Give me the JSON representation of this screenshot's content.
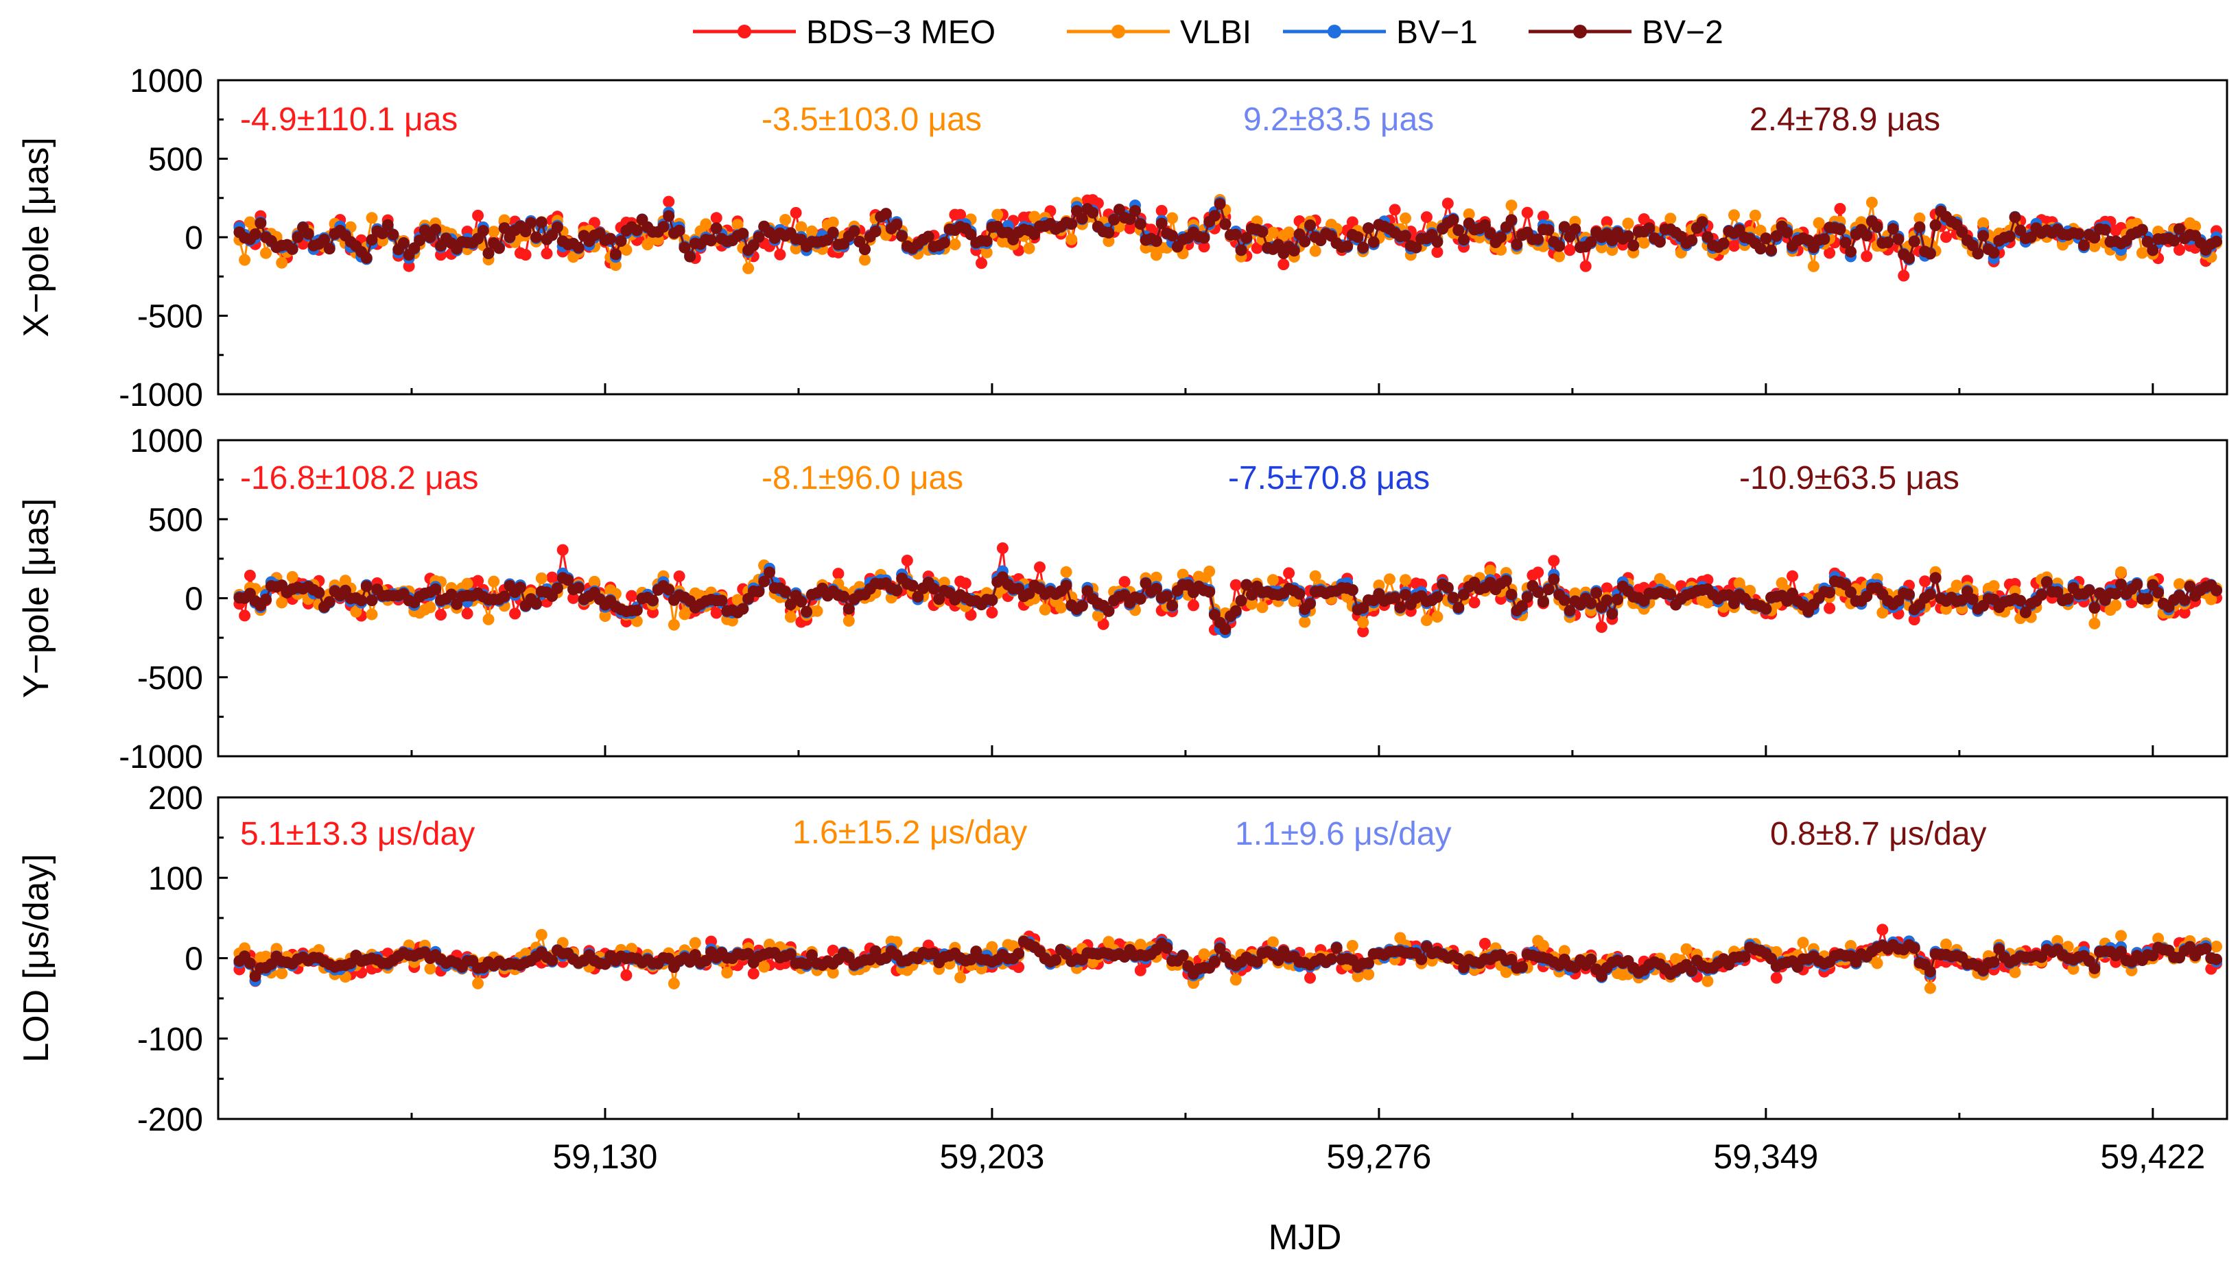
{
  "colors": {
    "bds3_meo": "#ff1a1a",
    "vlbi": "#ff8c00",
    "bv1": "#1f6fe0",
    "bv2": "#7a0f0f",
    "bv1_stat_light": "#6f86f2",
    "bv1_stat_dark": "#1f3fe0",
    "axis": "#000000",
    "background": "#ffffff"
  },
  "legend": {
    "placement": "top-center",
    "entries": [
      {
        "label": "BDS−3 MEO",
        "color": "#ff1a1a",
        "marker": "circle"
      },
      {
        "label": "VLBI",
        "color": "#ff8c00",
        "marker": "circle"
      },
      {
        "label": "BV−1",
        "color": "#1f6fe0",
        "marker": "circle"
      },
      {
        "label": "BV−2",
        "color": "#7a0f0f",
        "marker": "circle"
      }
    ]
  },
  "x_axis": {
    "label": "MJD",
    "range": [
      59057,
      59436
    ],
    "tick_values": [
      59130,
      59203,
      59276,
      59349,
      59422
    ],
    "tick_labels": [
      "59,130",
      "59,203",
      "59,276",
      "59,349",
      "59,422"
    ]
  },
  "chart_data": [
    {
      "type": "line",
      "panel": "x_pole",
      "ylabel": "X−pole [μas]",
      "ylim": [
        -1000,
        1000
      ],
      "yticks": [
        1000,
        500,
        0,
        -500,
        -1000
      ],
      "ytick_labels": [
        "1000",
        "500",
        "0",
        "-500",
        "-1000"
      ],
      "x_range": [
        59057,
        59436
      ],
      "series": [
        {
          "name": "BDS−3 MEO",
          "key": "bds3",
          "approx_std": 110
        },
        {
          "name": "VLBI",
          "key": "vlbi",
          "approx_std": 103
        },
        {
          "name": "BV−1",
          "key": "bv1",
          "approx_std": 84
        },
        {
          "name": "BV−2",
          "key": "bv2",
          "approx_std": 79
        }
      ],
      "annotations": [
        {
          "text": "-4.9±110.1 μas",
          "color": "#ff1a1a"
        },
        {
          "text": "-3.5±103.0 μas",
          "color": "#ff8c00"
        },
        {
          "text": "9.2±83.5 μas",
          "color": "#6f86f2"
        },
        {
          "text": "2.4±78.9 μas",
          "color": "#7a0f0f"
        }
      ]
    },
    {
      "type": "line",
      "panel": "y_pole",
      "ylabel": "Y−pole [μas]",
      "ylim": [
        -1000,
        1000
      ],
      "yticks": [
        1000,
        500,
        0,
        -500,
        -1000
      ],
      "ytick_labels": [
        "1000",
        "500",
        "0",
        "-500",
        "-1000"
      ],
      "x_range": [
        59057,
        59436
      ],
      "series": [
        {
          "name": "BDS−3 MEO",
          "key": "bds3",
          "approx_std": 108
        },
        {
          "name": "VLBI",
          "key": "vlbi",
          "approx_std": 96
        },
        {
          "name": "BV−1",
          "key": "bv1",
          "approx_std": 71
        },
        {
          "name": "BV−2",
          "key": "bv2",
          "approx_std": 64
        }
      ],
      "annotations": [
        {
          "text": "-16.8±108.2 μas",
          "color": "#ff1a1a"
        },
        {
          "text": "-8.1±96.0 μas",
          "color": "#ff8c00"
        },
        {
          "text": "-7.5±70.8 μas",
          "color": "#1f3fe0"
        },
        {
          "text": "-10.9±63.5 μas",
          "color": "#7a0f0f"
        }
      ]
    },
    {
      "type": "line",
      "panel": "lod",
      "ylabel": "LOD [μs/day]",
      "ylim": [
        -200,
        200
      ],
      "yticks": [
        200,
        100,
        0,
        -100,
        -200
      ],
      "ytick_labels": [
        "200",
        "100",
        "0",
        "-100",
        "-200"
      ],
      "x_range": [
        59057,
        59436
      ],
      "series": [
        {
          "name": "BDS−3 MEO",
          "key": "bds3",
          "approx_std": 13
        },
        {
          "name": "VLBI",
          "key": "vlbi",
          "approx_std": 15
        },
        {
          "name": "BV−1",
          "key": "bv1",
          "approx_std": 10
        },
        {
          "name": "BV−2",
          "key": "bv2",
          "approx_std": 9
        }
      ],
      "annotations": [
        {
          "text": "5.1±13.3 μs/day",
          "color": "#ff1a1a"
        },
        {
          "text": "1.6±15.2 μs/day",
          "color": "#ff8c00"
        },
        {
          "text": "1.1±9.6 μs/day",
          "color": "#6f86f2"
        },
        {
          "text": "0.8±8.7 μs/day",
          "color": "#7a0f0f"
        }
      ]
    }
  ]
}
